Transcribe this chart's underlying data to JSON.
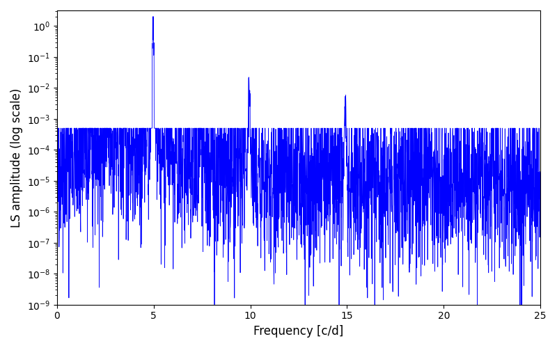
{
  "title": "",
  "xlabel": "Frequency [c/d]",
  "ylabel": "LS amplitude (log scale)",
  "xlim": [
    0,
    25
  ],
  "ylim_log": [
    -9,
    0.5
  ],
  "line_color": "#0000ff",
  "line_width": 0.6,
  "background_color": "#ffffff",
  "freq_min": 0.0,
  "freq_max": 25.0,
  "n_points": 3000,
  "peak_freq_1": 4.97,
  "peak_amp_1": 1.0,
  "peak_freq_2": 9.94,
  "peak_amp_2": 0.012,
  "peak_freq_3": 14.91,
  "peak_amp_3": 0.003,
  "base_noise_log": -5.0,
  "noise_amplitude": 2.0,
  "seed": 42,
  "figsize": [
    8.0,
    5.0
  ],
  "dpi": 100
}
